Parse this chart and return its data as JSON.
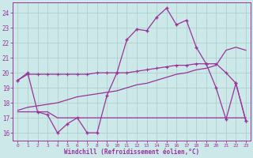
{
  "bg_color": "#cce8e8",
  "line_color": "#993399",
  "grid_color": "#aacccc",
  "xlim_min": -0.5,
  "xlim_max": 23.5,
  "ylim_min": 15.5,
  "ylim_max": 24.7,
  "xticks": [
    0,
    1,
    2,
    3,
    4,
    5,
    6,
    7,
    8,
    9,
    10,
    11,
    12,
    13,
    14,
    15,
    16,
    17,
    18,
    19,
    20,
    21,
    22,
    23
  ],
  "yticks": [
    16,
    17,
    18,
    19,
    20,
    21,
    22,
    23,
    24
  ],
  "xlabel": "Windchill (Refroidissement éolien,°C)",
  "s1_x": [
    0,
    1,
    2,
    3,
    4,
    5,
    6,
    7,
    8,
    9,
    10,
    11,
    12,
    13,
    14,
    15,
    16,
    17,
    18,
    19,
    20,
    21,
    22,
    23
  ],
  "s1_y": [
    19.5,
    20.0,
    17.4,
    17.2,
    16.0,
    16.6,
    17.0,
    16.0,
    16.0,
    18.5,
    20.0,
    22.2,
    22.9,
    22.8,
    23.7,
    24.3,
    23.2,
    23.5,
    21.7,
    20.6,
    19.0,
    16.9,
    19.3,
    16.8
  ],
  "s2_x": [
    0,
    1,
    2,
    3,
    4,
    5,
    6,
    7,
    8,
    9,
    10,
    11,
    12,
    13,
    14,
    15,
    16,
    17,
    18,
    19,
    20,
    21,
    22,
    23
  ],
  "s2_y": [
    17.4,
    17.4,
    17.4,
    17.4,
    17.0,
    17.0,
    17.0,
    17.0,
    17.0,
    17.0,
    17.0,
    17.0,
    17.0,
    17.0,
    17.0,
    17.0,
    17.0,
    17.0,
    17.0,
    17.0,
    17.0,
    17.0,
    17.0,
    17.0
  ],
  "s3_x": [
    0,
    1,
    2,
    3,
    4,
    5,
    6,
    7,
    8,
    9,
    10,
    11,
    12,
    13,
    14,
    15,
    16,
    17,
    18,
    19,
    20,
    21,
    22,
    23
  ],
  "s3_y": [
    19.5,
    19.9,
    19.9,
    19.9,
    19.9,
    19.9,
    19.9,
    19.9,
    20.0,
    20.0,
    20.0,
    20.0,
    20.1,
    20.2,
    20.3,
    20.4,
    20.5,
    20.5,
    20.6,
    20.6,
    20.6,
    20.0,
    19.3,
    16.8
  ],
  "s4_x": [
    0,
    1,
    2,
    3,
    4,
    5,
    6,
    7,
    8,
    9,
    10,
    11,
    12,
    13,
    14,
    15,
    16,
    17,
    18,
    19,
    20,
    21,
    22,
    23
  ],
  "s4_y": [
    17.5,
    17.7,
    17.8,
    17.9,
    18.0,
    18.2,
    18.4,
    18.5,
    18.6,
    18.7,
    18.8,
    19.0,
    19.2,
    19.3,
    19.5,
    19.7,
    19.9,
    20.0,
    20.2,
    20.3,
    20.5,
    21.5,
    21.7,
    21.5
  ]
}
